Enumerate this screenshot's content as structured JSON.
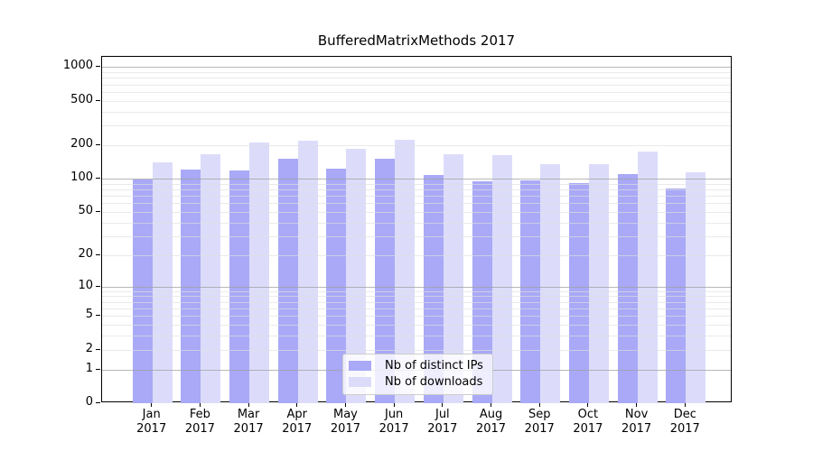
{
  "chart_data": {
    "type": "bar",
    "title": "BufferedMatrixMethods 2017",
    "categories": [
      "Jan 2017",
      "Feb 2017",
      "Mar 2017",
      "Apr 2017",
      "May 2017",
      "Jun 2017",
      "Jul 2017",
      "Aug 2017",
      "Sep 2017",
      "Oct 2017",
      "Nov 2017",
      "Dec 2017"
    ],
    "series": [
      {
        "name": "Nb of distinct IPs",
        "color": "#a9a9f7",
        "values": [
          98,
          120,
          118,
          152,
          123,
          150,
          108,
          95,
          97,
          91,
          110,
          82
        ]
      },
      {
        "name": "Nb of downloads",
        "color": "#dcdcfa",
        "values": [
          140,
          167,
          212,
          220,
          186,
          225,
          166,
          162,
          136,
          136,
          174,
          114
        ]
      }
    ],
    "xlabel": "",
    "ylabel": "",
    "yscale": "log10(1+x)",
    "y_ticks": [
      0,
      1,
      2,
      5,
      10,
      20,
      50,
      100,
      200,
      500,
      1000
    ],
    "y_minor_gridlines": [
      2,
      3,
      4,
      5,
      6,
      7,
      8,
      9,
      20,
      30,
      40,
      50,
      60,
      70,
      80,
      90,
      200,
      300,
      400,
      500,
      600,
      700,
      800,
      900
    ],
    "y_major_gridlines": [
      1,
      10,
      100,
      1000
    ],
    "ylim": [
      0,
      1230
    ],
    "grid": true,
    "legend_position": "lower center"
  },
  "colors": {
    "background": "#ffffff",
    "spine": "#000000",
    "major_grid": "#a0a0a0",
    "minor_grid": "#dedede",
    "legend_border": "#cccccc"
  }
}
